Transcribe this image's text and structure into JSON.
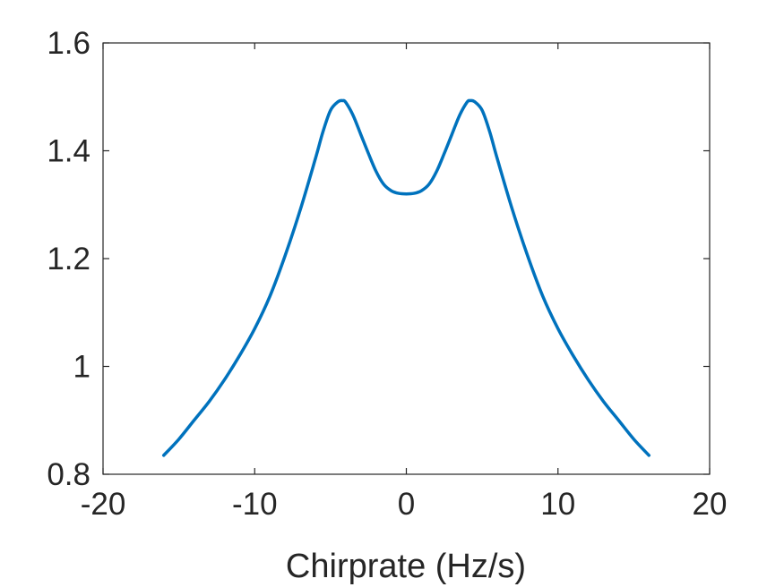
{
  "chart_data": {
    "type": "line",
    "title": "",
    "xlabel": "Chirprate (Hz/s)",
    "ylabel": "",
    "xlim": [
      -20,
      20
    ],
    "ylim": [
      0.8,
      1.6
    ],
    "xticks": [
      -20,
      -10,
      0,
      10,
      20
    ],
    "yticks": [
      0.8,
      1.0,
      1.2,
      1.4,
      1.6
    ],
    "xtick_labels": [
      "-20",
      "-10",
      "0",
      "10",
      "20"
    ],
    "ytick_labels": [
      "0.8",
      "1",
      "1.2",
      "1.4",
      "1.6"
    ],
    "grid": false,
    "legend": "none",
    "colors": {
      "line": "#0072BD",
      "axis": "#262626",
      "background": "#ffffff"
    },
    "series": [
      {
        "x": [
          -16,
          -15,
          -14,
          -13,
          -12,
          -11,
          -10,
          -9,
          -8,
          -7,
          -6,
          -5.5,
          -5,
          -4.5,
          -4.2,
          -4,
          -3.5,
          -3,
          -2.5,
          -2,
          -1.5,
          -1,
          -0.5,
          0,
          0.5,
          1,
          1.5,
          2,
          2.5,
          3,
          3.5,
          4,
          4.2,
          4.5,
          5,
          5.5,
          6,
          7,
          8,
          9,
          10,
          11,
          12,
          13,
          14,
          15,
          16
        ],
        "y": [
          0.835,
          0.865,
          0.9,
          0.935,
          0.975,
          1.02,
          1.07,
          1.13,
          1.205,
          1.29,
          1.385,
          1.435,
          1.475,
          1.491,
          1.493,
          1.49,
          1.465,
          1.43,
          1.395,
          1.362,
          1.338,
          1.326,
          1.321,
          1.32,
          1.321,
          1.326,
          1.338,
          1.362,
          1.395,
          1.43,
          1.465,
          1.49,
          1.493,
          1.491,
          1.475,
          1.435,
          1.385,
          1.29,
          1.205,
          1.13,
          1.07,
          1.02,
          0.975,
          0.935,
          0.9,
          0.865,
          0.835
        ]
      }
    ]
  }
}
